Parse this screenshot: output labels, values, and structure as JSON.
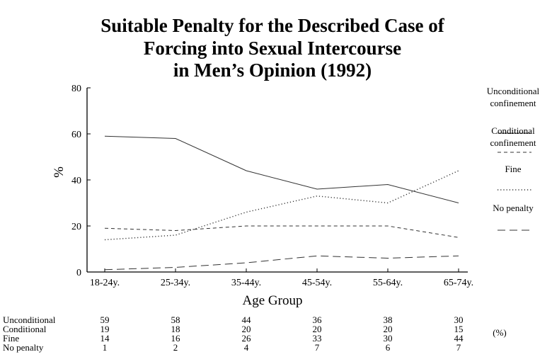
{
  "chart_data": {
    "type": "line",
    "title_lines": [
      "Suitable Penalty for the Described Case of",
      "Forcing into Sexual Intercourse",
      "in Men’s Opinion (1992)"
    ],
    "xlabel": "Age Group",
    "ylabel": "%",
    "ylim": [
      0,
      80
    ],
    "yticks": [
      0,
      20,
      40,
      60,
      80
    ],
    "categories": [
      "18-24y.",
      "25-34y.",
      "35-44y.",
      "45-54y.",
      "55-64y.",
      "65-74y."
    ],
    "series": [
      {
        "name": "Unconditional confinement",
        "legend_lines": [
          "Unconditional",
          "confinement"
        ],
        "table_label": "Unconditional",
        "style": "solid",
        "values": [
          59,
          58,
          44,
          36,
          38,
          30
        ]
      },
      {
        "name": "Conditional confinement",
        "legend_lines": [
          "Conditional",
          "confinement"
        ],
        "table_label": "Conditional",
        "style": "short-dash",
        "values": [
          19,
          18,
          20,
          20,
          20,
          15
        ]
      },
      {
        "name": "Fine",
        "legend_lines": [
          "Fine"
        ],
        "table_label": "Fine",
        "style": "dotted",
        "values": [
          14,
          16,
          26,
          33,
          30,
          44
        ]
      },
      {
        "name": "No penalty",
        "legend_lines": [
          "No penalty"
        ],
        "table_label": "No penalty",
        "style": "long-dash",
        "values": [
          1,
          2,
          4,
          7,
          6,
          7
        ]
      }
    ],
    "table_unit": "(%)",
    "legend_position": "right",
    "grid": false
  }
}
